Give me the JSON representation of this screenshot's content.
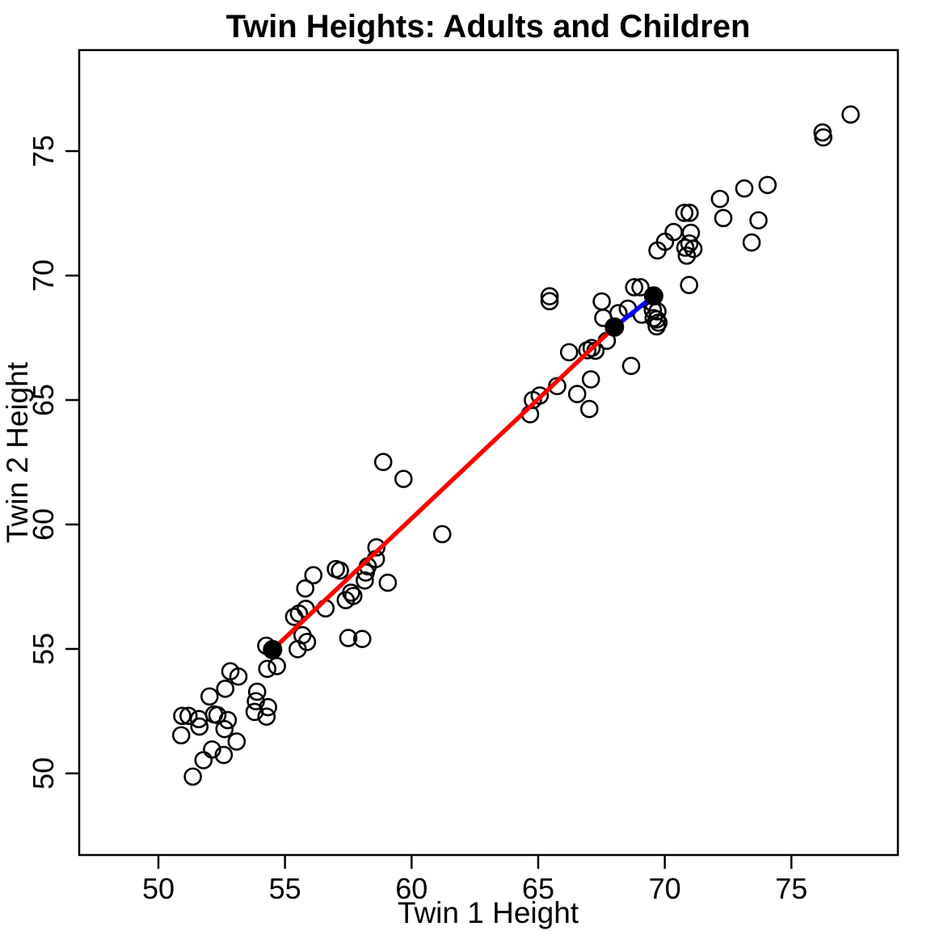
{
  "chart_data": {
    "type": "scatter",
    "title": "Twin Heights: Adults and Children",
    "xlabel": "Twin 1 Height",
    "ylabel": "Twin 2 Height",
    "xlim": [
      46.8,
      79.2
    ],
    "ylim": [
      46.7,
      79.1
    ],
    "x_ticks": [
      50,
      55,
      60,
      65,
      70,
      75
    ],
    "y_ticks": [
      50,
      55,
      60,
      65,
      70,
      75
    ],
    "grid": false,
    "legend": "none",
    "marker_color": "#000000",
    "accent_red": "#FF0000",
    "accent_blue": "#0000FF",
    "series": [
      {
        "name": "twin_pairs_open_circles",
        "marker": "open-circle",
        "color": "#000000",
        "points": [
          [
            54.26,
            55.13
          ],
          [
            55.69,
            55.55
          ],
          [
            55.87,
            55.28
          ],
          [
            55.5,
            54.99
          ],
          [
            54.3,
            54.2
          ],
          [
            54.68,
            54.31
          ],
          [
            52.84,
            54.1
          ],
          [
            53.16,
            53.89
          ],
          [
            52.64,
            53.4
          ],
          [
            52.02,
            53.09
          ],
          [
            53.9,
            53.28
          ],
          [
            53.85,
            52.9
          ],
          [
            53.8,
            52.47
          ],
          [
            54.33,
            52.66
          ],
          [
            54.27,
            52.28
          ],
          [
            50.94,
            52.31
          ],
          [
            51.19,
            52.31
          ],
          [
            51.6,
            52.18
          ],
          [
            51.62,
            51.88
          ],
          [
            52.2,
            52.37
          ],
          [
            52.33,
            52.34
          ],
          [
            52.74,
            52.14
          ],
          [
            52.61,
            51.78
          ],
          [
            50.9,
            51.53
          ],
          [
            53.09,
            51.28
          ],
          [
            52.12,
            50.96
          ],
          [
            52.58,
            50.74
          ],
          [
            51.78,
            50.53
          ],
          [
            51.36,
            49.87
          ],
          [
            61.21,
            59.61
          ],
          [
            58.61,
            59.08
          ],
          [
            58.59,
            58.61
          ],
          [
            58.27,
            58.32
          ],
          [
            58.19,
            58.07
          ],
          [
            57.01,
            58.21
          ],
          [
            57.17,
            58.15
          ],
          [
            56.12,
            57.96
          ],
          [
            58.15,
            57.75
          ],
          [
            59.06,
            57.66
          ],
          [
            55.8,
            57.43
          ],
          [
            57.61,
            57.26
          ],
          [
            57.7,
            57.13
          ],
          [
            57.4,
            56.96
          ],
          [
            56.6,
            56.63
          ],
          [
            55.55,
            56.42
          ],
          [
            55.82,
            56.61
          ],
          [
            55.36,
            56.29
          ],
          [
            57.5,
            55.44
          ],
          [
            58.05,
            55.4
          ],
          [
            58.88,
            62.51
          ],
          [
            59.68,
            61.83
          ],
          [
            67.57,
            68.3
          ],
          [
            68.54,
            68.67
          ],
          [
            69.09,
            68.43
          ],
          [
            67.71,
            67.38
          ],
          [
            66.22,
            66.92
          ],
          [
            66.94,
            67.0
          ],
          [
            67.11,
            67.09
          ],
          [
            67.26,
            66.98
          ],
          [
            68.67,
            66.37
          ],
          [
            67.08,
            65.83
          ],
          [
            65.75,
            65.56
          ],
          [
            66.54,
            65.24
          ],
          [
            65.06,
            65.18
          ],
          [
            64.79,
            65.0
          ],
          [
            64.68,
            64.43
          ],
          [
            67.02,
            64.64
          ],
          [
            65.45,
            69.17
          ],
          [
            65.45,
            68.97
          ],
          [
            73.14,
            73.5
          ],
          [
            74.06,
            73.64
          ],
          [
            72.18,
            73.08
          ],
          [
            70.77,
            72.52
          ],
          [
            70.98,
            72.52
          ],
          [
            72.31,
            72.31
          ],
          [
            73.7,
            72.22
          ],
          [
            70.35,
            71.75
          ],
          [
            71.03,
            71.72
          ],
          [
            70.01,
            71.36
          ],
          [
            69.71,
            71.01
          ],
          [
            70.97,
            71.29
          ],
          [
            70.81,
            71.12
          ],
          [
            71.13,
            71.07
          ],
          [
            70.87,
            70.8
          ],
          [
            73.43,
            71.33
          ],
          [
            70.96,
            69.62
          ],
          [
            68.79,
            69.53
          ],
          [
            69.04,
            69.53
          ],
          [
            67.51,
            68.96
          ],
          [
            68.17,
            68.49
          ],
          [
            69.53,
            68.61
          ],
          [
            69.71,
            68.56
          ],
          [
            69.56,
            68.29
          ],
          [
            69.68,
            68.24
          ],
          [
            69.75,
            68.11
          ],
          [
            69.68,
            67.96
          ],
          [
            76.23,
            75.75
          ],
          [
            76.26,
            75.55
          ],
          [
            77.34,
            76.47
          ]
        ]
      },
      {
        "name": "highlighted_pairs_filled",
        "marker": "filled-circle",
        "color": "#000000",
        "points": [
          [
            54.51,
            54.97
          ],
          [
            68.01,
            67.93
          ],
          [
            69.56,
            69.18
          ]
        ]
      }
    ],
    "annotations": {
      "segments": [
        {
          "name": "red_segment",
          "color": "#FF0000",
          "from": [
            54.51,
            54.97
          ],
          "to": [
            68.01,
            67.93
          ]
        },
        {
          "name": "blue_segment",
          "color": "#0000FF",
          "from": [
            68.01,
            67.93
          ],
          "to": [
            69.56,
            69.18
          ]
        }
      ]
    }
  }
}
